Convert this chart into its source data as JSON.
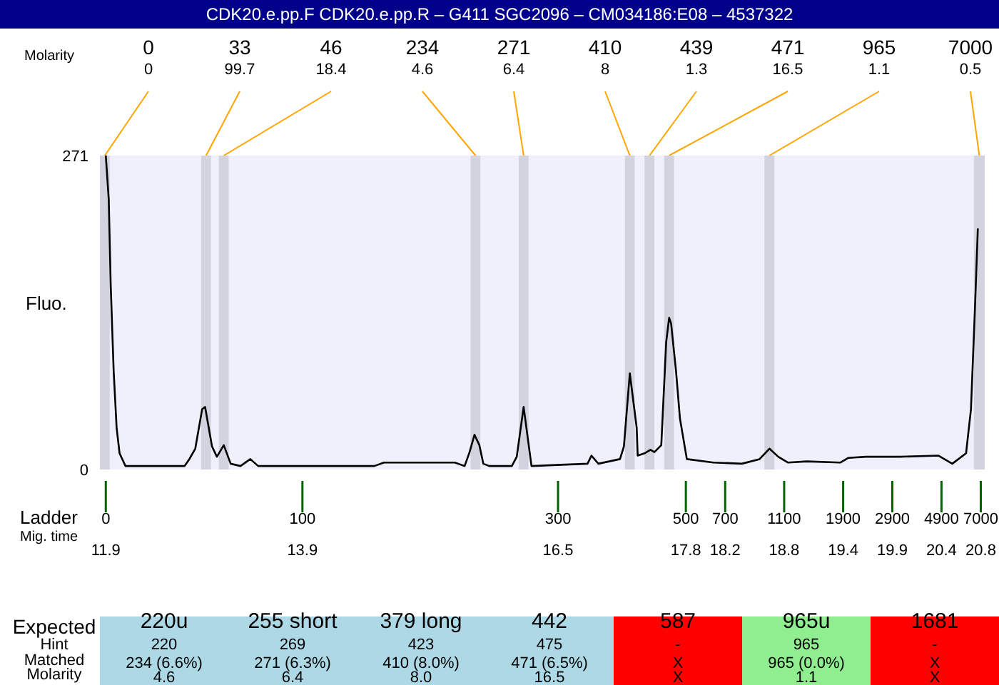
{
  "chart_data": [
    {
      "type": "line",
      "title": "CDK20.e.pp.F  CDK20.e.pp.R – G411 SGC2096 – CM034186:E08 – 4537322",
      "xlabel": "Mig. time",
      "ylabel": "Fluo.",
      "x": [
        11.9,
        11.93,
        11.95,
        11.98,
        12.01,
        12.04,
        12.1,
        12.7,
        12.75,
        12.81,
        12.88,
        12.91,
        12.98,
        13.03,
        13.1,
        13.17,
        13.27,
        13.37,
        13.45,
        14.63,
        14.73,
        15.45,
        15.55,
        15.6,
        15.65,
        15.7,
        15.74,
        15.8,
        16.03,
        16.08,
        16.15,
        16.23,
        16.8,
        16.84,
        16.91,
        17.13,
        17.17,
        17.23,
        17.3,
        17.31,
        17.38,
        17.44,
        17.48,
        17.55,
        17.6,
        17.63,
        17.65,
        17.7,
        17.74,
        17.81,
        18.08,
        18.37,
        18.55,
        18.65,
        18.74,
        18.84,
        19.03,
        19.37,
        19.45,
        19.63,
        19.98,
        20.37,
        20.51,
        20.65,
        20.7,
        20.74,
        20.77
      ],
      "series": [
        {
          "color": "#000000",
          "values": [
            271,
            233,
            159,
            85,
            36,
            14,
            3,
            3,
            9,
            18,
            52,
            54,
            20,
            11,
            21,
            5,
            3,
            9,
            3,
            3,
            6,
            6,
            3,
            15,
            30,
            21,
            5,
            3,
            3,
            11,
            54,
            3,
            5,
            12,
            5,
            9,
            20,
            83,
            36,
            12,
            14,
            17,
            15,
            21,
            110,
            131,
            126,
            85,
            44,
            9,
            6,
            5,
            9,
            18,
            11,
            6,
            7,
            6,
            10,
            11,
            11,
            12,
            5,
            14,
            52,
            138,
            208
          ]
        }
      ],
      "xlim": [
        11.84,
        20.84
      ],
      "ylim": [
        0,
        271
      ],
      "yticks": [
        0,
        271
      ],
      "xticks": [
        11.9,
        13.9,
        16.5,
        17.8,
        18.2,
        18.8,
        19.4,
        19.9,
        20.4,
        20.8
      ],
      "bands": [
        {
          "axis": "x",
          "from": 11.84,
          "to": 11.94,
          "color": "#d3d3df"
        },
        {
          "axis": "x",
          "from": 12.87,
          "to": 12.97,
          "color": "#d3d3df"
        },
        {
          "axis": "x",
          "from": 13.05,
          "to": 13.15,
          "color": "#d3d3df"
        },
        {
          "axis": "x",
          "from": 15.61,
          "to": 15.71,
          "color": "#d3d3df"
        },
        {
          "axis": "x",
          "from": 16.1,
          "to": 16.2,
          "color": "#d3d3df"
        },
        {
          "axis": "x",
          "from": 17.18,
          "to": 17.28,
          "color": "#d3d3df"
        },
        {
          "axis": "x",
          "from": 17.38,
          "to": 17.48,
          "color": "#d3d3df"
        },
        {
          "axis": "x",
          "from": 17.58,
          "to": 17.68,
          "color": "#d3d3df"
        },
        {
          "axis": "x",
          "from": 18.6,
          "to": 18.7,
          "color": "#d3d3df"
        },
        {
          "axis": "x",
          "from": 20.73,
          "to": 20.84,
          "color": "#d3d3df"
        }
      ],
      "annotations": [
        "Molarity",
        "Ladder",
        "0",
        "0",
        "33",
        "99.7",
        "46",
        "18.4",
        "234",
        "4.6",
        "271",
        "6.4",
        "410",
        "8",
        "439",
        "1.3",
        "471",
        "16.5",
        "965",
        "1.1",
        "7000",
        "0.5",
        "0",
        "100",
        "300",
        "500",
        "700",
        "1100",
        "1900",
        "2900",
        "4900",
        "7000"
      ]
    },
    {
      "type": "other",
      "categories": [
        "220u",
        "255 short",
        "379 long",
        "442",
        "587",
        "965u",
        "1681"
      ],
      "y_categories": [
        "Expected",
        "Hint",
        "Matched",
        "Molarity"
      ],
      "cell_labels": [
        [
          "220",
          "269",
          "423",
          "475",
          "-",
          "965",
          "-"
        ],
        [
          "234 (6.6%)",
          "271 (6.3%)",
          "410 (8.0%)",
          "471 (6.5%)",
          "X",
          "965 (0.0%)",
          "X"
        ],
        [
          "4.6",
          "6.4",
          "8.0",
          "16.5",
          "X",
          "1.1",
          "X"
        ]
      ],
      "colors": [
        "#add8e6",
        "#add8e6",
        "#add8e6",
        "#add8e6",
        "#ff0000",
        "#90ee90",
        "#ff0000"
      ]
    }
  ]
}
